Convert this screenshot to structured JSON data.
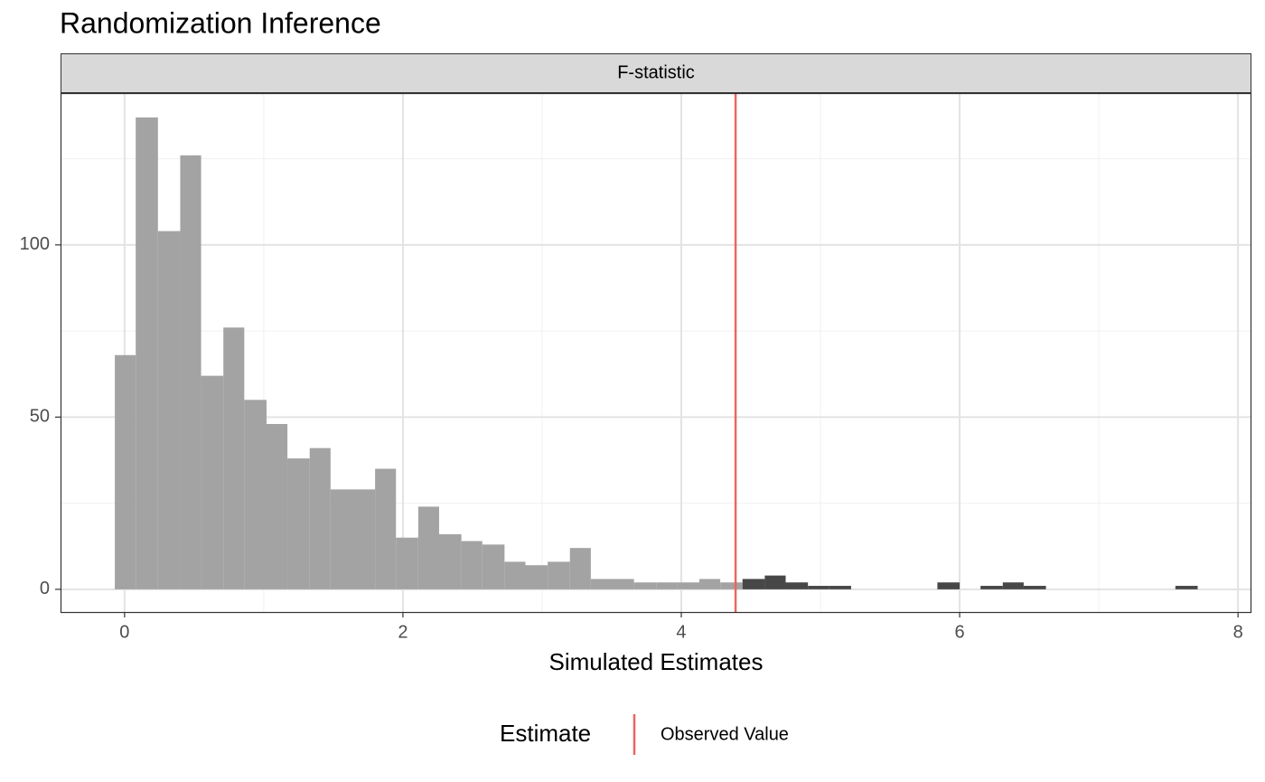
{
  "chart_data": {
    "type": "histogram",
    "title": "Randomization Inference",
    "strip": "F-statistic",
    "x_label": "Simulated Estimates",
    "bins": [
      -0.07,
      0.08,
      0.24,
      0.4,
      0.55,
      0.71,
      0.86,
      1.02,
      1.17,
      1.33,
      1.48,
      1.64,
      1.8,
      1.95,
      2.11,
      2.26,
      2.42,
      2.57,
      2.73,
      2.88,
      3.04,
      3.2,
      3.35,
      3.51,
      3.66,
      3.82,
      3.97,
      4.13,
      4.28,
      4.44,
      4.6,
      4.75,
      4.91,
      5.06,
      5.22,
      5.37,
      5.53,
      5.69,
      5.84,
      6.0,
      6.15,
      6.31,
      6.46,
      6.62,
      6.77,
      6.93,
      7.09,
      7.24,
      7.4,
      7.55,
      7.71
    ],
    "counts": [
      68,
      137,
      104,
      126,
      62,
      76,
      55,
      48,
      38,
      41,
      29,
      29,
      35,
      15,
      24,
      16,
      14,
      13,
      8,
      7,
      8,
      12,
      3,
      3,
      2,
      2,
      2,
      3,
      2,
      3,
      4,
      2,
      1,
      1,
      0,
      0,
      0,
      0,
      2,
      0,
      1,
      2,
      1,
      0,
      0,
      0,
      0,
      0,
      0,
      1
    ],
    "color": "#a3a3a3",
    "extreme_color": "#474747",
    "vline": {
      "name": "Observed Value",
      "value": 4.39,
      "color": "#ec6563"
    },
    "legend_title": "Estimate",
    "legend_position": "bottom",
    "xlim": [
      -0.46,
      8.09
    ],
    "xticks": [
      0,
      2,
      4,
      6,
      8
    ],
    "ylim": [
      -6.6,
      143.8
    ],
    "yticks": [
      0,
      50,
      100
    ],
    "grid": true
  }
}
